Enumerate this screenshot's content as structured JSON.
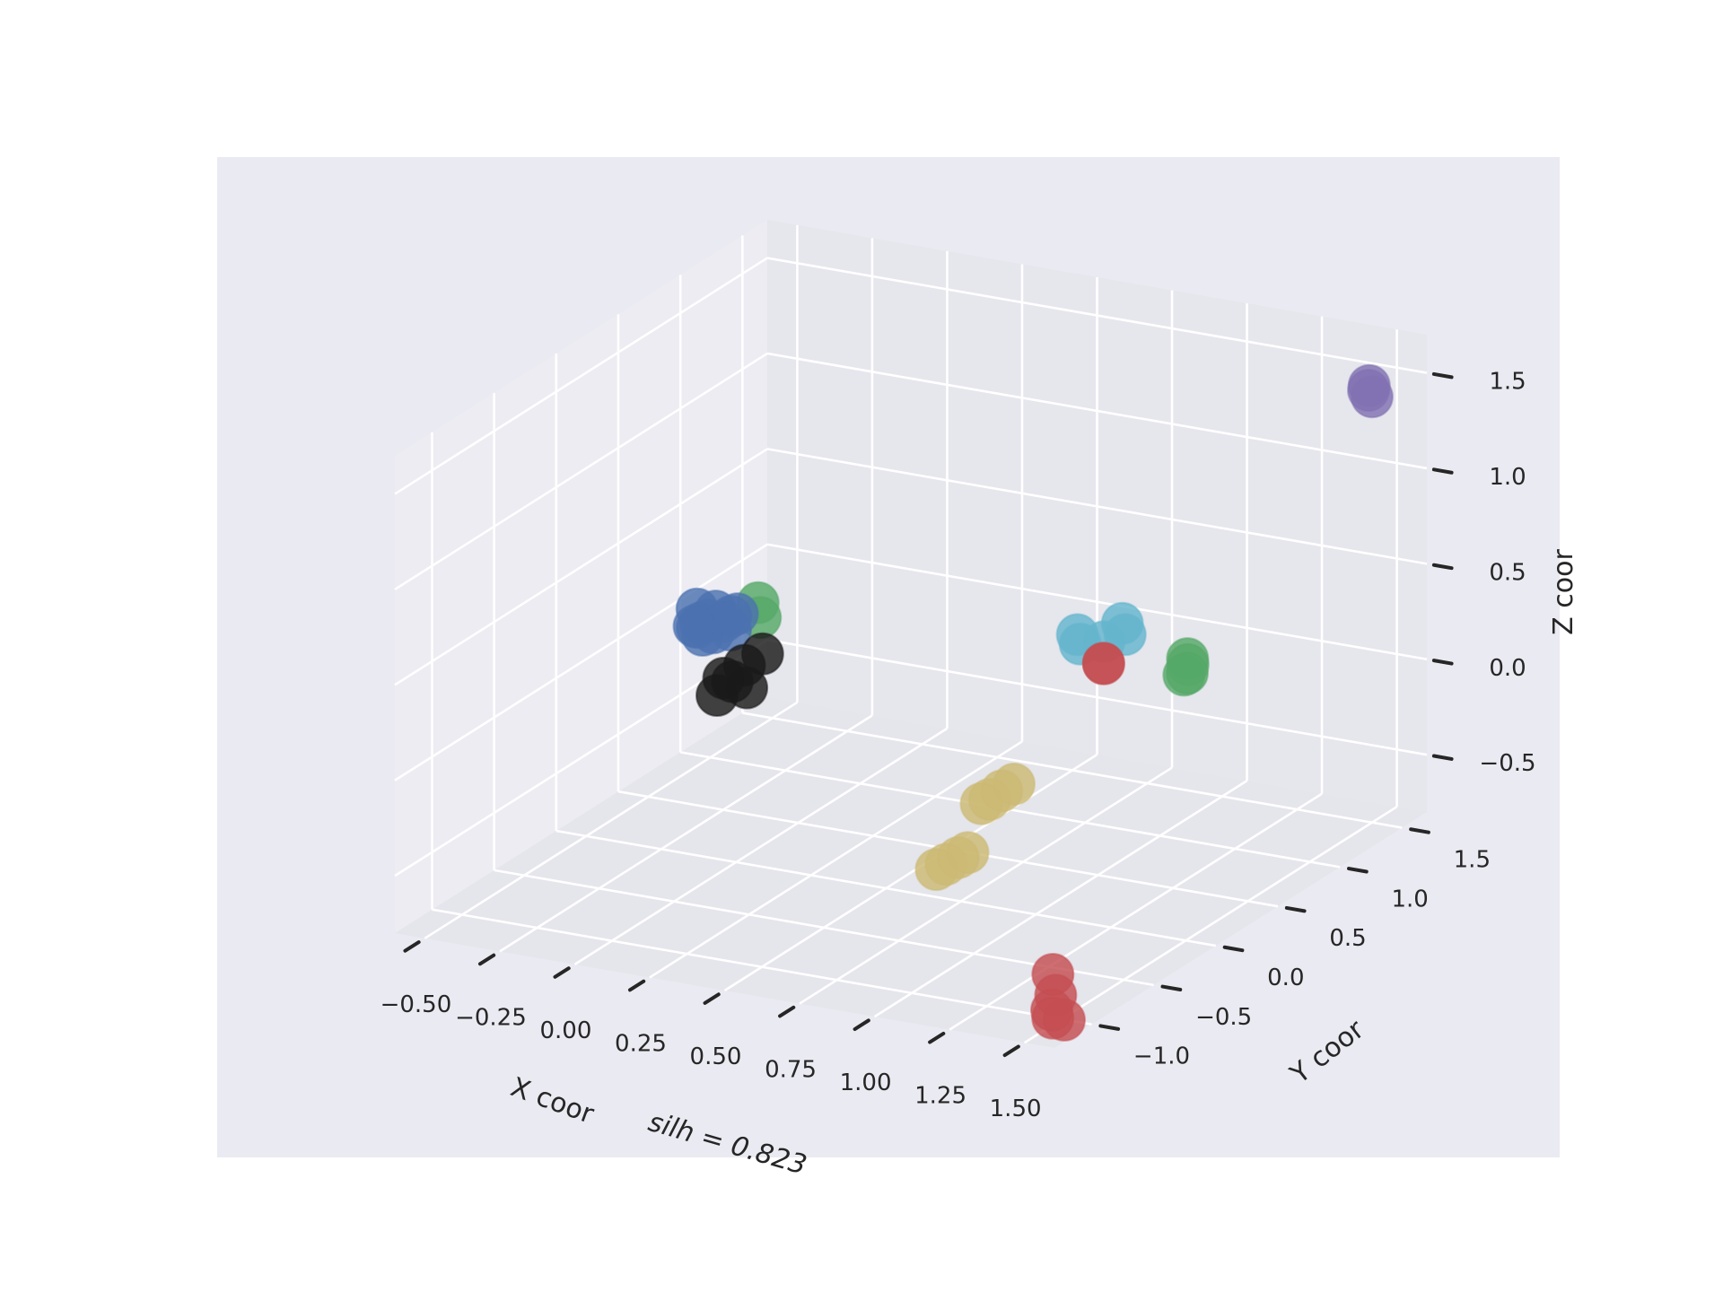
{
  "chart_data": {
    "type": "scatter",
    "projection": "3d",
    "title": "",
    "xlabel": "X coor",
    "ylabel": "Y coor",
    "zlabel": "Z coor",
    "annotation": "silh = 0.823",
    "xlim": [
      -0.6,
      1.6
    ],
    "ylim": [
      -1.3,
      1.7
    ],
    "zlim": [
      -0.8,
      1.7
    ],
    "xticks": [
      "−0.50",
      "−0.25",
      "0.00",
      "0.25",
      "0.50",
      "0.75",
      "1.00",
      "1.25",
      "1.50"
    ],
    "yticks": [
      "−1.0",
      "−0.5",
      "0.0",
      "0.5",
      "1.0",
      "1.5"
    ],
    "zticks": [
      "−0.5",
      "0.0",
      "0.5",
      "1.0",
      "1.5"
    ],
    "grid": true,
    "pane_color": "#e8e8ef",
    "background": "#eaeaf2",
    "series": [
      {
        "color": "#4c72b0",
        "points": [
          [
            -0.45,
            0.8,
            0.0
          ],
          [
            -0.42,
            0.85,
            0.05
          ],
          [
            -0.38,
            0.82,
            0.02
          ],
          [
            -0.4,
            0.78,
            -0.03
          ],
          [
            -0.44,
            0.75,
            0.0
          ],
          [
            -0.36,
            0.88,
            0.04
          ],
          [
            -0.41,
            0.72,
            -0.02
          ],
          [
            -0.47,
            0.82,
            0.06
          ],
          [
            -0.39,
            0.9,
            0.01
          ],
          [
            -0.43,
            0.7,
            0.03
          ],
          [
            -0.35,
            0.8,
            -0.01
          ],
          [
            -0.46,
            0.88,
            -0.02
          ]
        ]
      },
      {
        "color": "#55a868",
        "points": [
          [
            -0.32,
            0.95,
            0.08
          ],
          [
            -0.3,
            0.92,
            0.02
          ],
          [
            1.05,
            1.1,
            0.1
          ],
          [
            1.07,
            1.05,
            0.05
          ],
          [
            1.03,
            1.12,
            0.0
          ],
          [
            1.06,
            1.08,
            0.08
          ]
        ]
      },
      {
        "color": "#1a1a1a",
        "points": [
          [
            -0.2,
            0.55,
            -0.05
          ],
          [
            -0.22,
            0.5,
            -0.12
          ],
          [
            -0.25,
            0.45,
            -0.18
          ],
          [
            -0.18,
            0.52,
            -0.15
          ],
          [
            -0.24,
            0.48,
            -0.1
          ],
          [
            -0.16,
            0.6,
            0.0
          ]
        ]
      },
      {
        "color": "#c44e52",
        "points": [
          [
            0.75,
            1.15,
            -0.03
          ],
          [
            0.77,
            1.1,
            0.0
          ],
          [
            1.45,
            -0.95,
            -0.6
          ],
          [
            1.48,
            -1.0,
            -0.68
          ],
          [
            1.5,
            -1.08,
            -0.72
          ],
          [
            1.52,
            -1.12,
            -0.74
          ],
          [
            1.55,
            -1.1,
            -0.75
          ]
        ]
      },
      {
        "color": "#64b5cd",
        "points": [
          [
            0.6,
            1.3,
            0.02
          ],
          [
            0.63,
            1.25,
            0.0
          ],
          [
            0.75,
            1.3,
            0.12
          ],
          [
            0.78,
            1.25,
            0.09
          ],
          [
            0.73,
            1.2,
            0.06
          ]
        ]
      },
      {
        "color": "#ccb974",
        "points": [
          [
            0.7,
            0.45,
            -0.42
          ],
          [
            0.68,
            0.4,
            -0.45
          ],
          [
            0.72,
            0.5,
            -0.4
          ],
          [
            0.66,
            0.38,
            -0.47
          ],
          [
            0.7,
            0.0,
            -0.62
          ],
          [
            0.72,
            0.05,
            -0.6
          ],
          [
            0.68,
            -0.03,
            -0.64
          ],
          [
            0.74,
            0.08,
            -0.58
          ]
        ]
      },
      {
        "color": "#8172b2",
        "points": [
          [
            1.48,
            1.52,
            1.45
          ],
          [
            1.5,
            1.5,
            1.43
          ],
          [
            1.47,
            1.55,
            1.46
          ]
        ]
      }
    ]
  }
}
